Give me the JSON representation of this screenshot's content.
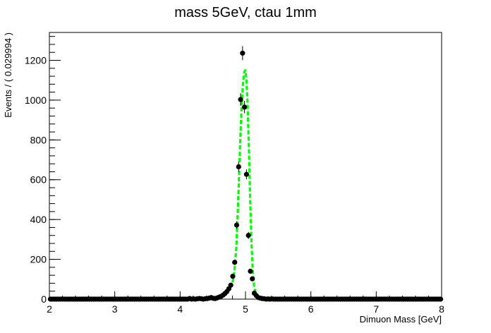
{
  "chart_data": {
    "type": "scatter",
    "title": "mass 5GeV, ctau 1mm",
    "xlabel": "Dimuon Mass [GeV]",
    "ylabel": "Events / ( 0.029994 )",
    "xlim": [
      2,
      8
    ],
    "ylim": [
      0,
      1340
    ],
    "x_ticks": [
      2,
      3,
      4,
      5,
      6,
      7,
      8
    ],
    "y_ticks": [
      0,
      200,
      400,
      600,
      800,
      1000,
      1200
    ],
    "grid": false,
    "legend": "none",
    "series": [
      {
        "kind": "data_points_with_error_bars",
        "color": "#000000",
        "points": [
          [
            2.015,
            0
          ],
          [
            2.045,
            0
          ],
          [
            2.075,
            0
          ],
          [
            2.105,
            0
          ],
          [
            2.135,
            0
          ],
          [
            2.165,
            0
          ],
          [
            2.195,
            0
          ],
          [
            2.225,
            0
          ],
          [
            2.255,
            0
          ],
          [
            2.285,
            0
          ],
          [
            2.315,
            0
          ],
          [
            2.345,
            0
          ],
          [
            2.375,
            0
          ],
          [
            2.405,
            0
          ],
          [
            2.435,
            0
          ],
          [
            2.465,
            0
          ],
          [
            2.495,
            0
          ],
          [
            2.525,
            0
          ],
          [
            2.555,
            0
          ],
          [
            2.585,
            0
          ],
          [
            2.615,
            0
          ],
          [
            2.645,
            0
          ],
          [
            2.675,
            0
          ],
          [
            2.705,
            0
          ],
          [
            2.735,
            0
          ],
          [
            2.765,
            0
          ],
          [
            2.795,
            0
          ],
          [
            2.825,
            0
          ],
          [
            2.855,
            0
          ],
          [
            2.885,
            0
          ],
          [
            2.915,
            0
          ],
          [
            2.945,
            0
          ],
          [
            2.975,
            0
          ],
          [
            3.005,
            0
          ],
          [
            3.035,
            0
          ],
          [
            3.065,
            0
          ],
          [
            3.095,
            0
          ],
          [
            3.125,
            0
          ],
          [
            3.155,
            0
          ],
          [
            3.185,
            0
          ],
          [
            3.215,
            0
          ],
          [
            3.245,
            0
          ],
          [
            3.275,
            0
          ],
          [
            3.305,
            0
          ],
          [
            3.335,
            0
          ],
          [
            3.365,
            0
          ],
          [
            3.395,
            0
          ],
          [
            3.425,
            0
          ],
          [
            3.455,
            0
          ],
          [
            3.485,
            0
          ],
          [
            3.515,
            0
          ],
          [
            3.545,
            0
          ],
          [
            3.575,
            0
          ],
          [
            3.605,
            0
          ],
          [
            3.635,
            0
          ],
          [
            3.665,
            0
          ],
          [
            3.695,
            0
          ],
          [
            3.725,
            0
          ],
          [
            3.755,
            0
          ],
          [
            3.785,
            0
          ],
          [
            3.815,
            0
          ],
          [
            3.845,
            0
          ],
          [
            3.875,
            0
          ],
          [
            3.905,
            0
          ],
          [
            3.935,
            0
          ],
          [
            3.965,
            0
          ],
          [
            3.995,
            0
          ],
          [
            4.025,
            0
          ],
          [
            4.055,
            0
          ],
          [
            4.085,
            0
          ],
          [
            4.115,
            0
          ],
          [
            4.145,
            3
          ],
          [
            4.175,
            0
          ],
          [
            4.205,
            1
          ],
          [
            4.235,
            0
          ],
          [
            4.265,
            2
          ],
          [
            4.295,
            3
          ],
          [
            4.325,
            2
          ],
          [
            4.355,
            0
          ],
          [
            4.385,
            2
          ],
          [
            4.415,
            3
          ],
          [
            4.445,
            5
          ],
          [
            4.475,
            8
          ],
          [
            4.505,
            4
          ],
          [
            4.535,
            3
          ],
          [
            4.565,
            6
          ],
          [
            4.595,
            10
          ],
          [
            4.625,
            14
          ],
          [
            4.655,
            20
          ],
          [
            4.685,
            28
          ],
          [
            4.715,
            38
          ],
          [
            4.745,
            52
          ],
          [
            4.775,
            70
          ],
          [
            4.805,
            115
          ],
          [
            4.835,
            185
          ],
          [
            4.865,
            372
          ],
          [
            4.895,
            665
          ],
          [
            4.925,
            1003
          ],
          [
            4.955,
            1236
          ],
          [
            4.985,
            965
          ],
          [
            5.015,
            627
          ],
          [
            5.045,
            320
          ],
          [
            5.075,
            140
          ],
          [
            5.105,
            102
          ],
          [
            5.135,
            30
          ],
          [
            5.165,
            18
          ],
          [
            5.195,
            8
          ],
          [
            5.225,
            5
          ],
          [
            5.255,
            3
          ],
          [
            5.285,
            2
          ],
          [
            5.315,
            0
          ],
          [
            5.345,
            1
          ],
          [
            5.375,
            0
          ],
          [
            5.405,
            1
          ],
          [
            5.435,
            0
          ],
          [
            5.465,
            0
          ],
          [
            5.495,
            0
          ],
          [
            5.525,
            0
          ],
          [
            5.555,
            0
          ],
          [
            5.585,
            0
          ],
          [
            5.615,
            0
          ],
          [
            5.645,
            0
          ],
          [
            5.675,
            0
          ],
          [
            5.705,
            0
          ],
          [
            5.735,
            0
          ],
          [
            5.765,
            0
          ],
          [
            5.795,
            0
          ],
          [
            5.825,
            0
          ],
          [
            5.855,
            0
          ],
          [
            5.885,
            0
          ],
          [
            5.915,
            0
          ],
          [
            5.945,
            0
          ],
          [
            5.975,
            0
          ],
          [
            6.005,
            0
          ],
          [
            6.035,
            0
          ],
          [
            6.065,
            0
          ],
          [
            6.095,
            0
          ],
          [
            6.125,
            0
          ],
          [
            6.155,
            0
          ],
          [
            6.185,
            0
          ],
          [
            6.215,
            0
          ],
          [
            6.245,
            0
          ],
          [
            6.275,
            0
          ],
          [
            6.305,
            0
          ],
          [
            6.335,
            0
          ],
          [
            6.365,
            0
          ],
          [
            6.395,
            0
          ],
          [
            6.425,
            0
          ],
          [
            6.455,
            0
          ],
          [
            6.485,
            0
          ],
          [
            6.515,
            0
          ],
          [
            6.545,
            0
          ],
          [
            6.575,
            0
          ],
          [
            6.605,
            0
          ],
          [
            6.635,
            0
          ],
          [
            6.665,
            0
          ],
          [
            6.695,
            0
          ],
          [
            6.725,
            0
          ],
          [
            6.755,
            0
          ],
          [
            6.785,
            0
          ],
          [
            6.815,
            0
          ],
          [
            6.845,
            0
          ],
          [
            6.875,
            0
          ],
          [
            6.905,
            0
          ],
          [
            6.935,
            0
          ],
          [
            6.965,
            0
          ],
          [
            6.995,
            0
          ],
          [
            7.025,
            0
          ],
          [
            7.055,
            0
          ],
          [
            7.085,
            0
          ],
          [
            7.115,
            0
          ],
          [
            7.145,
            0
          ],
          [
            7.175,
            0
          ],
          [
            7.205,
            0
          ],
          [
            7.235,
            0
          ],
          [
            7.265,
            0
          ],
          [
            7.295,
            0
          ],
          [
            7.325,
            0
          ],
          [
            7.355,
            0
          ],
          [
            7.385,
            0
          ],
          [
            7.415,
            0
          ],
          [
            7.445,
            0
          ],
          [
            7.475,
            0
          ],
          [
            7.505,
            0
          ],
          [
            7.535,
            0
          ],
          [
            7.565,
            0
          ],
          [
            7.595,
            0
          ],
          [
            7.625,
            0
          ],
          [
            7.655,
            0
          ],
          [
            7.685,
            0
          ],
          [
            7.715,
            0
          ],
          [
            7.745,
            0
          ],
          [
            7.775,
            0
          ],
          [
            7.805,
            0
          ],
          [
            7.835,
            0
          ],
          [
            7.865,
            0
          ],
          [
            7.895,
            0
          ],
          [
            7.925,
            0
          ],
          [
            7.955,
            0
          ],
          [
            7.985,
            0
          ]
        ]
      },
      {
        "kind": "fit_curve",
        "color": "#00ff00",
        "style": "dashed",
        "points": [
          [
            2.0,
            0
          ],
          [
            4.0,
            0
          ],
          [
            4.3,
            1
          ],
          [
            4.4,
            3
          ],
          [
            4.5,
            6
          ],
          [
            4.6,
            12
          ],
          [
            4.65,
            18
          ],
          [
            4.7,
            28
          ],
          [
            4.75,
            45
          ],
          [
            4.8,
            80
          ],
          [
            4.83,
            140
          ],
          [
            4.86,
            260
          ],
          [
            4.88,
            420
          ],
          [
            4.9,
            600
          ],
          [
            4.92,
            800
          ],
          [
            4.94,
            960
          ],
          [
            4.96,
            1080
          ],
          [
            4.98,
            1140
          ],
          [
            4.995,
            1150
          ],
          [
            5.01,
            1120
          ],
          [
            5.03,
            1000
          ],
          [
            5.05,
            780
          ],
          [
            5.07,
            520
          ],
          [
            5.09,
            300
          ],
          [
            5.11,
            150
          ],
          [
            5.13,
            70
          ],
          [
            5.15,
            35
          ],
          [
            5.2,
            12
          ],
          [
            5.25,
            5
          ],
          [
            5.3,
            2
          ],
          [
            5.4,
            1
          ],
          [
            5.6,
            0
          ],
          [
            8.0,
            0
          ]
        ]
      }
    ]
  }
}
